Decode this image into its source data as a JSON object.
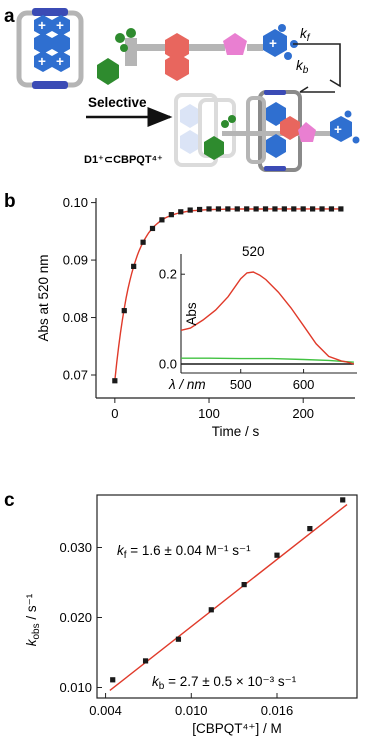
{
  "panel_a": {
    "letter": "a",
    "kf": "k",
    "kf_sub": "f",
    "kb": "k",
    "kb_sub": "b",
    "arrow_label": "Selective",
    "complex_label": "D1⁺⊂CBPQT⁴⁺",
    "plus_sign": "+"
  },
  "panel_b": {
    "letter": "b",
    "inset_peak_label": "520",
    "inset_ylabel": "Abs",
    "inset_xlabel": "λ / nm"
  },
  "panel_c": {
    "letter": "c",
    "kf_text_k": "k",
    "kf_text_sub": "f",
    "kf_text_rest": " = 1.6 ± 0.04 M⁻¹ s⁻¹",
    "kb_text_k": "k",
    "kb_text_sub": "b",
    "kb_text_rest": " = 2.7 ± 0.5 × 10⁻³ s⁻¹",
    "ylabel_k": "k",
    "ylabel_sub": "obs",
    "ylabel_rest": " / s⁻¹"
  },
  "colors": {
    "blue_unit": "#2f6fd0",
    "green_unit": "#2e8b2e",
    "red_unit": "#e8665e",
    "pink_unit": "#e97fd1",
    "grey_rod": "#b0b0b0",
    "fit_red": "#e03a2a",
    "inset_green": "#42c242",
    "marker": "#1a1a1a"
  },
  "chart_data": [
    {
      "type": "scatter",
      "title": "",
      "xlabel": "Time / s",
      "ylabel": "Abs at 520 nm",
      "xlim": [
        -20,
        255
      ],
      "ylim": [
        0.066,
        0.1008
      ],
      "xticks": [
        0,
        100,
        200
      ],
      "yticks": [
        0.07,
        0.08,
        0.09,
        0.1
      ],
      "ytick_labels": [
        "0.07",
        "0.08",
        "0.09",
        "0.10"
      ],
      "series": [
        {
          "marker": "square",
          "x": [
            0,
            10,
            20,
            30,
            40,
            50,
            60,
            70,
            80,
            90,
            100,
            110,
            120,
            130,
            140,
            150,
            160,
            170,
            180,
            190,
            200,
            210,
            220,
            230,
            240
          ],
          "y": [
            0.069,
            0.0812,
            0.0889,
            0.0931,
            0.0955,
            0.097,
            0.0979,
            0.0984,
            0.0987,
            0.0988,
            0.0989,
            0.0989,
            0.0989,
            0.0989,
            0.0989,
            0.0989,
            0.0989,
            0.0989,
            0.0989,
            0.0989,
            0.0989,
            0.0989,
            0.0989,
            0.0989,
            0.0989
          ]
        }
      ],
      "fit": {
        "type": "exponential",
        "color": "#e03a2a"
      }
    },
    {
      "type": "line",
      "title": "",
      "xlabel": "λ / nm",
      "ylabel": "Abs",
      "xlim": [
        405,
        685
      ],
      "ylim": [
        -0.02,
        0.245
      ],
      "xticks": [
        500,
        600
      ],
      "yticks": [
        0.0,
        0.2
      ],
      "ytick_labels": [
        "0.0",
        "0.2"
      ],
      "annotations": [
        "520"
      ],
      "series": [
        {
          "color": "#e03a2a",
          "x": [
            405,
            420,
            440,
            460,
            480,
            500,
            510,
            520,
            530,
            540,
            560,
            580,
            600,
            620,
            640,
            660,
            670,
            680
          ],
          "y": [
            0.075,
            0.08,
            0.098,
            0.12,
            0.15,
            0.19,
            0.203,
            0.205,
            0.198,
            0.188,
            0.16,
            0.125,
            0.085,
            0.045,
            0.017,
            0.007,
            0.004,
            0.0
          ]
        },
        {
          "color": "#42c242",
          "x": [
            405,
            450,
            500,
            550,
            600,
            640,
            660,
            680
          ],
          "y": [
            0.013,
            0.013,
            0.012,
            0.012,
            0.01,
            0.008,
            0.006,
            0.004
          ]
        },
        {
          "color": "#1a1a1a",
          "x": [
            405,
            450,
            500,
            550,
            600,
            650,
            680
          ],
          "y": [
            0.0,
            0.0,
            0.0,
            0.0,
            0.0,
            0.0,
            0.0
          ]
        }
      ]
    },
    {
      "type": "scatter",
      "title": "",
      "xlabel": "[CBPQT⁴⁺] / M",
      "ylabel": "kobs / s⁻¹",
      "xlim": [
        0.0034,
        0.0216
      ],
      "ylim": [
        0.0085,
        0.0375
      ],
      "xticks": [
        0.004,
        0.01,
        0.016
      ],
      "xtick_labels": [
        "0.004",
        "0.010",
        "0.016"
      ],
      "yticks": [
        0.01,
        0.02,
        0.03
      ],
      "ytick_labels": [
        "0.010",
        "0.020",
        "0.030"
      ],
      "series": [
        {
          "marker": "square",
          "x": [
            0.0045,
            0.0068,
            0.0091,
            0.0114,
            0.0137,
            0.016,
            0.0183,
            0.0206
          ],
          "y": [
            0.0111,
            0.0138,
            0.0169,
            0.0211,
            0.0247,
            0.0289,
            0.0327,
            0.0368
          ]
        }
      ],
      "fit": {
        "type": "linear",
        "slope": 1.6,
        "intercept": 0.0027,
        "color": "#e03a2a"
      }
    }
  ]
}
